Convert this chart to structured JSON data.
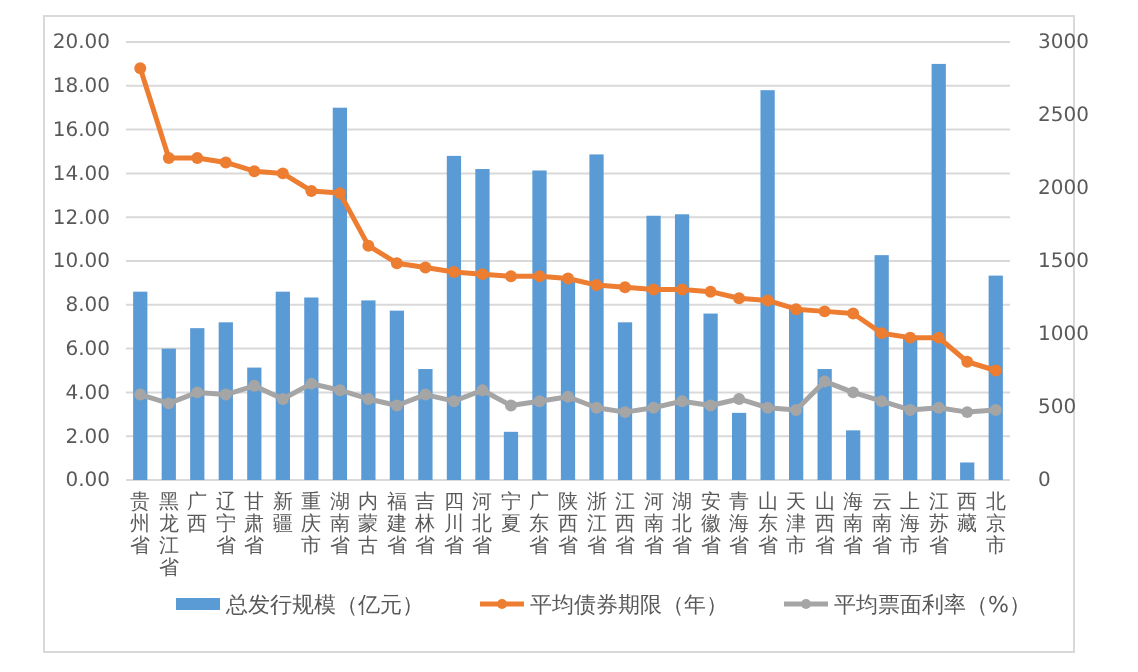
{
  "chart_data": {
    "type": "bar",
    "categories": [
      "贵州省",
      "黑龙江省",
      "广西",
      "辽宁省",
      "甘肃省",
      "新疆",
      "重庆市",
      "湖南省",
      "内蒙古",
      "福建省",
      "吉林省",
      "四川省",
      "河北省",
      "宁夏",
      "广东省",
      "陕西省",
      "浙江省",
      "江西省",
      "河南省",
      "湖北省",
      "安徽省",
      "青海省",
      "山东省",
      "天津市",
      "山西省",
      "海南省",
      "云南省",
      "上海市",
      "江苏省",
      "西藏",
      "北京市"
    ],
    "series": [
      {
        "name": "总发行规模（亿元）",
        "axis": "y2",
        "color": "#5b9bd5",
        "values": [
          1290,
          900,
          1040,
          1080,
          770,
          1290,
          1250,
          2550,
          1230,
          1160,
          760,
          2220,
          2130,
          330,
          2120,
          1380,
          2230,
          1080,
          1810,
          1820,
          1140,
          460,
          2670,
          1170,
          760,
          340,
          1540,
          980,
          2850,
          120,
          1400
        ]
      },
      {
        "name": "平均债券期限（年）",
        "type": "line",
        "axis": "y",
        "color": "#ed7d31",
        "values": [
          18.8,
          14.7,
          14.7,
          14.5,
          14.1,
          14.0,
          13.2,
          13.1,
          10.7,
          9.9,
          9.7,
          9.5,
          9.4,
          9.3,
          9.3,
          9.2,
          8.9,
          8.8,
          8.7,
          8.7,
          8.6,
          8.3,
          8.2,
          7.8,
          7.7,
          7.6,
          6.7,
          6.5,
          6.5,
          5.4,
          5.0
        ]
      },
      {
        "name": "平均票面利率（%）",
        "type": "line",
        "axis": "y",
        "color": "#a5a5a5",
        "values": [
          3.9,
          3.5,
          4.0,
          3.9,
          4.3,
          3.7,
          4.4,
          4.1,
          3.7,
          3.4,
          3.9,
          3.6,
          4.1,
          3.4,
          3.6,
          3.8,
          3.3,
          3.1,
          3.3,
          3.6,
          3.4,
          3.7,
          3.3,
          3.2,
          4.5,
          4.0,
          3.6,
          3.2,
          3.3,
          3.1,
          3.2
        ]
      }
    ],
    "ylim": [
      0,
      20
    ],
    "yticks": [
      {
        "value": 0,
        "label": "0.00"
      },
      {
        "value": 2,
        "label": "2.00"
      },
      {
        "value": 4,
        "label": "4.00"
      },
      {
        "value": 6,
        "label": "6.00"
      },
      {
        "value": 8,
        "label": "8.00"
      },
      {
        "value": 10,
        "label": "10.00"
      },
      {
        "value": 12,
        "label": "12.00"
      },
      {
        "value": 14,
        "label": "14.00"
      },
      {
        "value": 16,
        "label": "16.00"
      },
      {
        "value": 18,
        "label": "18.00"
      },
      {
        "value": 20,
        "label": "20.00"
      }
    ],
    "y2lim": [
      0,
      3000
    ],
    "y2ticks": [
      0,
      500,
      1000,
      1500,
      2000,
      2500,
      3000
    ],
    "grid": "y",
    "legend": "bottom",
    "marker": "circle"
  }
}
